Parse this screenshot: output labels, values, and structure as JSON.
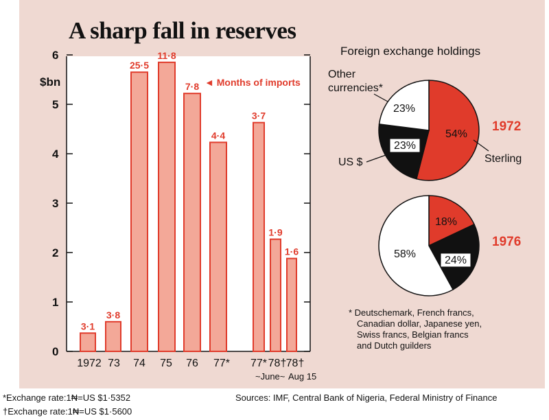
{
  "colors": {
    "bar_fill": "#f3a898",
    "bar_stroke": "#e03b2b",
    "accent": "#e03b2b",
    "ink": "#111111",
    "panel": "#efd9d2",
    "white": "#ffffff"
  },
  "chart_data": [
    {
      "type": "bar",
      "title": "A sharp fall in reserves",
      "ylabel": "$bn",
      "ylim": [
        0,
        6
      ],
      "yticks": [
        "0",
        "1",
        "2",
        "3",
        "4",
        "5",
        "6"
      ],
      "categories": [
        "1972",
        "73",
        "74",
        "75",
        "76",
        "77*",
        "77*",
        "78†",
        "78†"
      ],
      "values": [
        0.37,
        0.6,
        5.65,
        5.85,
        5.22,
        4.23,
        4.63,
        2.27,
        1.88
      ],
      "months_of_imports": [
        "3·1",
        "3·8",
        "25·5",
        "11·8",
        "7·8",
        "4·4",
        "3·7",
        "1·9",
        "1·6"
      ],
      "annotation": "◄ Months of imports",
      "sub_labels": [
        "June",
        "Aug 15"
      ]
    },
    {
      "type": "pie",
      "title": "Foreign exchange holdings",
      "year": "1972",
      "slices": [
        {
          "label": "Sterling",
          "value": 54,
          "text": "54%"
        },
        {
          "label": "US $",
          "value": 23,
          "text": "23%"
        },
        {
          "label": "Other currencies*",
          "value": 23,
          "text": "23%"
        }
      ]
    },
    {
      "type": "pie",
      "title": "Foreign exchange holdings",
      "year": "1976",
      "slices": [
        {
          "label": "Sterling",
          "value": 18,
          "text": "18%"
        },
        {
          "label": "US $",
          "value": 24,
          "text": "24%"
        },
        {
          "label": "Other currencies*",
          "value": 58,
          "text": "58%"
        }
      ]
    }
  ],
  "pie_labels": {
    "other_line1": "Other",
    "other_line2": "currencies*",
    "usd": "US $",
    "sterling": "Sterling"
  },
  "legend_note": [
    "* Deutschemark, French francs,",
    "Canadian dollar, Japanese yen,",
    "Swiss francs, Belgian francs",
    "and Dutch guilders"
  ],
  "footnotes": {
    "rate1": "*Exchange rate:1₦=US $1·5352",
    "rate2": "†Exchange rate:1₦=US $1·5600",
    "sources": "Sources: IMF, Central Bank of Nigeria, Federal Ministry of Finance"
  }
}
